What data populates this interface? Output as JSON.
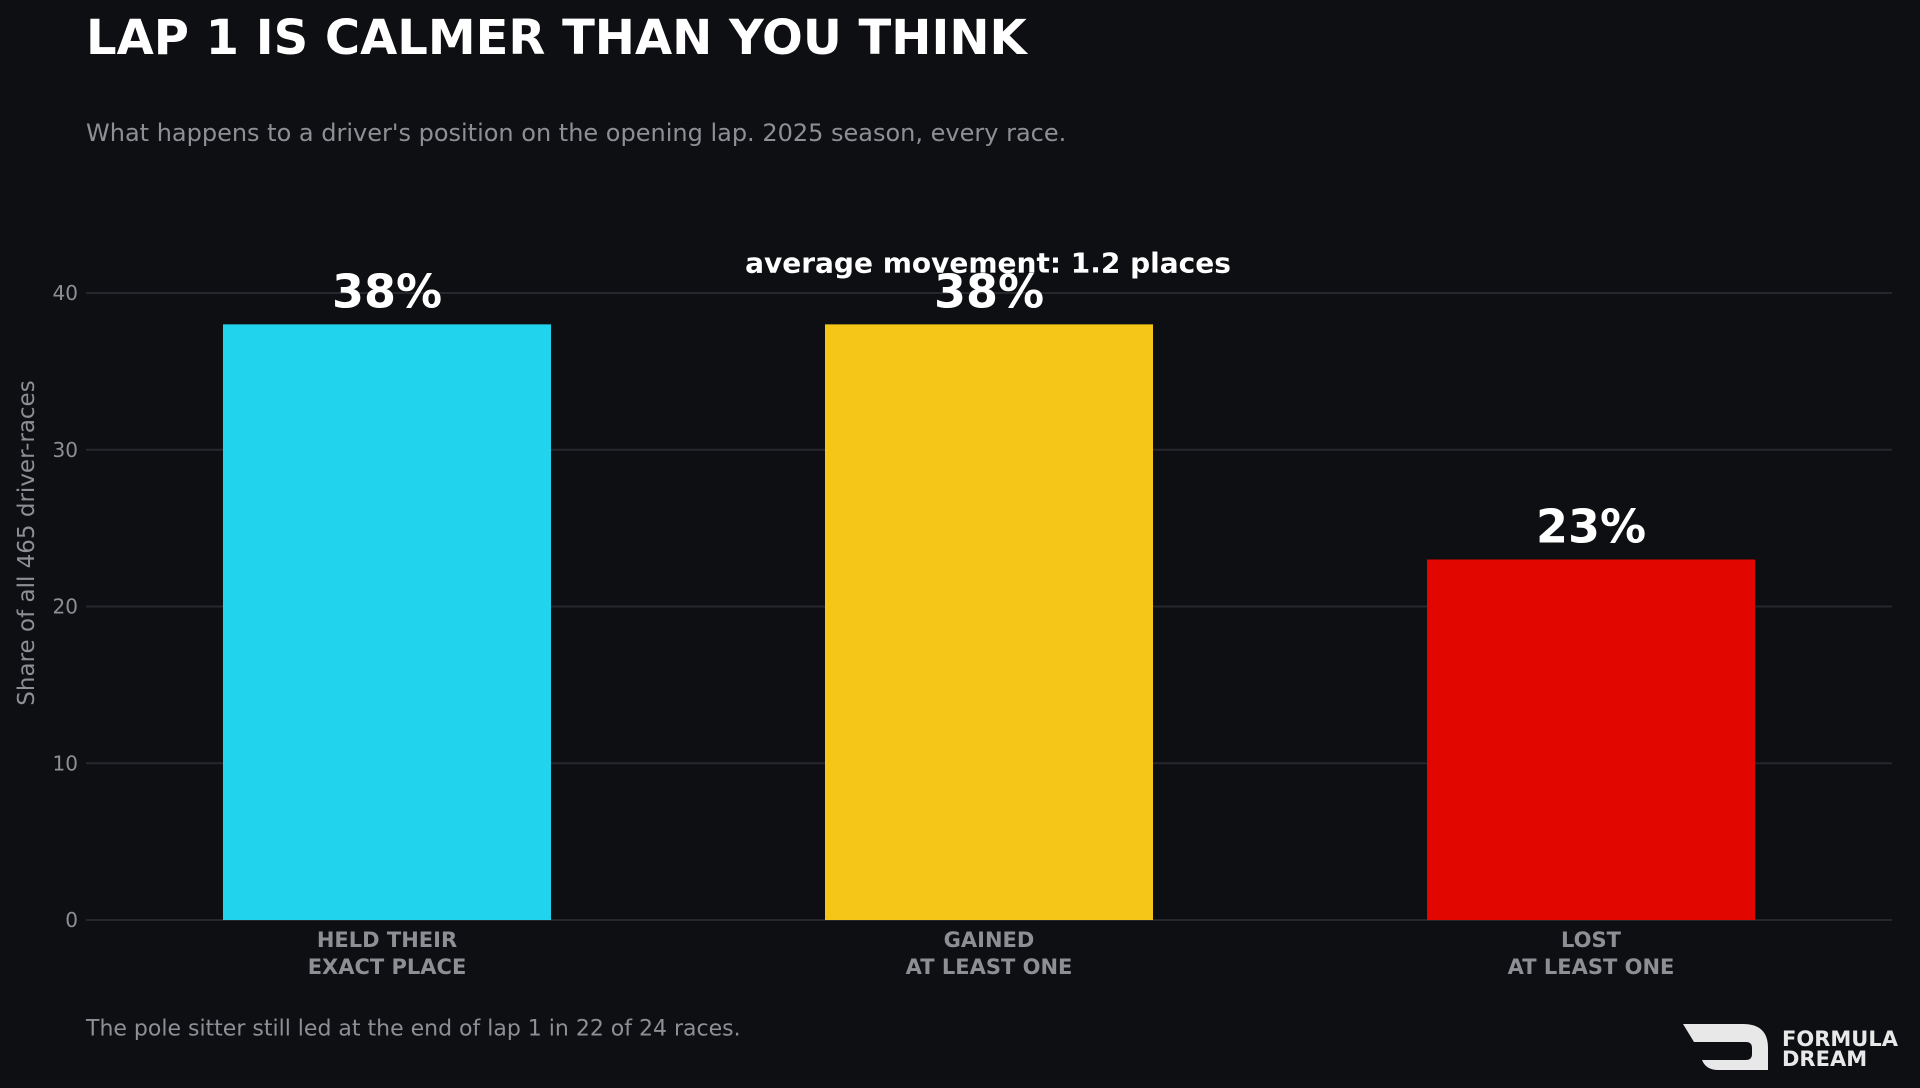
{
  "chart_data": {
    "type": "bar",
    "title": "LAP 1 IS CALMER THAN YOU THINK",
    "subtitle": "What happens to a driver's position on the opening lap. 2025 season, every race.",
    "ylabel": "Share of all 465 driver-races",
    "annotation": "average movement: 1.2 places",
    "footnote": "The pole sitter still led at the end of lap 1 in 22 of 24 races.",
    "categories": [
      [
        "HELD THEIR",
        "EXACT PLACE"
      ],
      [
        "GAINED",
        "AT LEAST ONE"
      ],
      [
        "LOST",
        "AT LEAST ONE"
      ]
    ],
    "values": [
      38,
      38,
      23
    ],
    "value_labels": [
      "38%",
      "38%",
      "23%"
    ],
    "colors": [
      "#22d3ee",
      "#f5c518",
      "#e10600"
    ],
    "ylim": [
      0,
      40
    ],
    "yticks": [
      0,
      10,
      20,
      30,
      40
    ],
    "grid": true
  },
  "logo": {
    "lines": [
      "FORMULA",
      "DREAM"
    ]
  }
}
